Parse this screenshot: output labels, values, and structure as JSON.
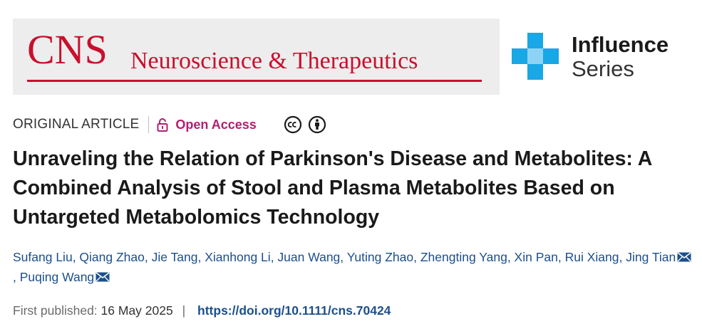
{
  "banner": {
    "journal_abbr": "CNS",
    "journal_name": "Neuroscience & Therapeutics",
    "brand_color": "#c8102e"
  },
  "influence": {
    "title": "Influence",
    "subtitle": "Series",
    "logo_color": "#19a7e6"
  },
  "meta": {
    "article_type": "ORIGINAL ARTICLE",
    "open_access": "Open Access",
    "open_access_color": "#b11f71",
    "icons": [
      "lock-icon",
      "creative-commons-icon",
      "attribution-icon"
    ]
  },
  "title": "Unraveling the Relation of Parkinson's Disease and Metabolites: A Combined Analysis of Stool and Plasma Metabolites Based on Untargeted Metabolomics Technology",
  "authors": [
    {
      "name": "Sufang Liu",
      "corresponding": false
    },
    {
      "name": "Qiang Zhao",
      "corresponding": false
    },
    {
      "name": "Jie Tang",
      "corresponding": false
    },
    {
      "name": "Xianhong Li",
      "corresponding": false
    },
    {
      "name": "Juan Wang",
      "corresponding": false
    },
    {
      "name": "Yuting Zhao",
      "corresponding": false
    },
    {
      "name": "Zhengting Yang",
      "corresponding": false
    },
    {
      "name": "Xin Pan",
      "corresponding": false
    },
    {
      "name": "Rui Xiang",
      "corresponding": false
    },
    {
      "name": "Jing Tian",
      "corresponding": true
    },
    {
      "name": "Puqing Wang",
      "corresponding": true
    }
  ],
  "published": {
    "label": "First published:",
    "date": "16 May 2025",
    "separator": "|",
    "doi": "https://doi.org/10.1111/cns.70424"
  }
}
